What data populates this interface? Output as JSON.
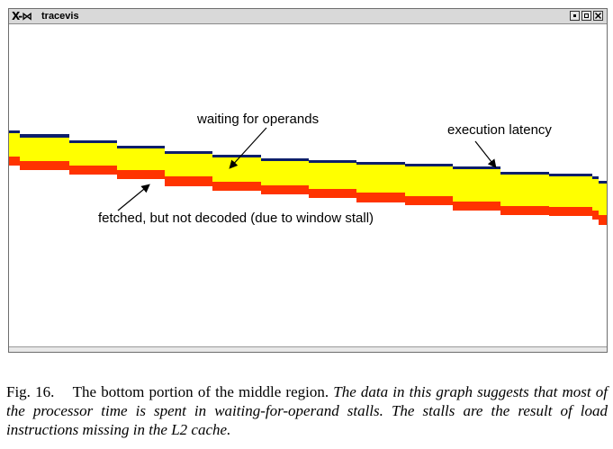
{
  "window": {
    "title": "tracevis",
    "app_icon": "x-window-logo-icon",
    "controls": [
      "minimize-icon",
      "maximize-icon",
      "close-icon"
    ]
  },
  "graph": {
    "colors": {
      "execution_latency": "#0d1f6b",
      "waiting_for_operands": "#ffff00",
      "fetched_not_decoded": "#ff3300"
    },
    "labels": {
      "waiting": "waiting for operands",
      "execution": "execution latency",
      "fetched": "fetched, but not decoded (due to window stall)"
    }
  },
  "caption": {
    "fig": "Fig. 16.",
    "main": "The bottom portion of the middle region.",
    "italic": "The data in this graph suggests that most of the processor time is spent in waiting-for-operand stalls. The stalls are the result of load instructions missing in the L2 cache."
  }
}
